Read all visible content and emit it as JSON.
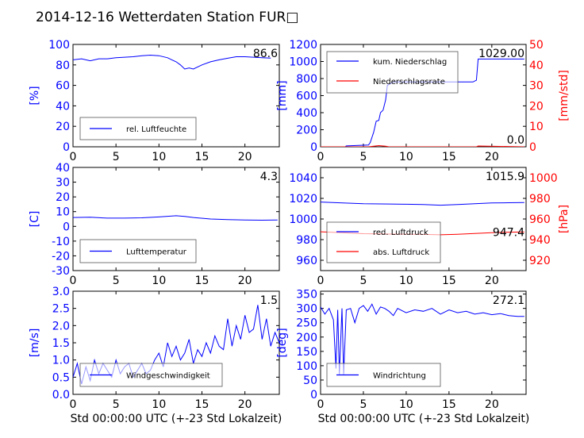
{
  "title": "2014-12-16 Wetterdaten Station FUR□",
  "xlabel": "Std 00:00:00 UTC (+-23 Std Lokalzeit)",
  "colors": {
    "blue": "#0000ff",
    "red": "#ff0000",
    "black": "#000000"
  },
  "chart_data": [
    {
      "type": "line",
      "panel": "humidity",
      "xlim": [
        0,
        24
      ],
      "xticks": [
        0,
        5,
        10,
        15,
        20
      ],
      "ylabel": "[%]",
      "ylim": [
        0,
        100
      ],
      "yticks": [
        0,
        20,
        40,
        60,
        80,
        100
      ],
      "current_value": "86.6",
      "legend_position": "lower-left",
      "series": [
        {
          "name": "rel. Luftfeuchte",
          "color": "#0000ff",
          "x": [
            0,
            1,
            2,
            3,
            4,
            5,
            6,
            7,
            8,
            9,
            10,
            11,
            11.5,
            12,
            12.5,
            13,
            13.5,
            14,
            15,
            16,
            17,
            18,
            19,
            20,
            21,
            22,
            23
          ],
          "y": [
            85,
            86,
            84,
            86,
            86,
            87,
            87.5,
            88,
            89,
            89.5,
            89,
            87,
            85,
            83,
            80,
            76,
            77,
            76,
            80,
            83,
            85,
            86.5,
            88,
            88,
            87.5,
            87,
            86.6
          ]
        }
      ]
    },
    {
      "type": "line",
      "panel": "precipitation",
      "xlim": [
        0,
        24
      ],
      "xticks": [
        0,
        5,
        10,
        15,
        20
      ],
      "ylabel": "[mm]",
      "ylim": [
        0,
        1200
      ],
      "yticks": [
        0,
        200,
        400,
        600,
        800,
        1000,
        1200
      ],
      "ylabel_right": "[mm/std]",
      "ylim_right": [
        0,
        50
      ],
      "yticks_right": [
        0,
        10,
        20,
        30,
        40,
        50
      ],
      "current_value": "1029.00",
      "current_value_right": "0.0",
      "legend_position": "upper-left",
      "series": [
        {
          "name": "kum. Niederschlag",
          "color": "#0000ff",
          "axis": "left",
          "x": [
            0,
            2.9,
            3,
            5.6,
            5.8,
            6.2,
            6.5,
            6.8,
            7.0,
            7.3,
            7.6,
            7.8,
            8.5,
            10,
            12,
            14,
            16,
            17.8,
            18.2,
            18.4,
            20,
            22,
            23.8
          ],
          "y": [
            0,
            0,
            10,
            20,
            50,
            170,
            300,
            310,
            400,
            430,
            550,
            720,
            760,
            760,
            760,
            760,
            760,
            760,
            780,
            1029,
            1029,
            1029,
            1029
          ]
        },
        {
          "name": "Niederschlagsrate",
          "color": "#ff0000",
          "axis": "right",
          "x": [
            0,
            5.6,
            6.2,
            6.8,
            7.6,
            8.0,
            18.2,
            18.4,
            23.8
          ],
          "y": [
            0,
            0,
            0.3,
            0.6,
            0.3,
            0,
            0,
            0.4,
            0
          ]
        }
      ]
    },
    {
      "type": "line",
      "panel": "temperature",
      "xlim": [
        0,
        24
      ],
      "xticks": [
        0,
        5,
        10,
        15,
        20
      ],
      "ylabel": "[C]",
      "ylim": [
        -30,
        40
      ],
      "yticks": [
        -30,
        -20,
        -10,
        0,
        10,
        20,
        30,
        40
      ],
      "current_value": "4.3",
      "legend_position": "lower-left",
      "series": [
        {
          "name": "Lufttemperatur",
          "color": "#0000ff",
          "x": [
            0,
            2,
            4,
            6,
            8,
            10,
            12,
            13,
            14,
            16,
            18,
            20,
            22,
            23.8
          ],
          "y": [
            6.0,
            6.2,
            5.6,
            5.6,
            5.8,
            6.4,
            7.2,
            6.8,
            6.0,
            5.0,
            4.6,
            4.3,
            4.2,
            4.3
          ]
        }
      ]
    },
    {
      "type": "line",
      "panel": "pressure",
      "xlim": [
        0,
        24
      ],
      "xticks": [
        0,
        5,
        10,
        15,
        20
      ],
      "ylim": [
        950,
        1050
      ],
      "yticks": [
        960,
        980,
        1000,
        1020,
        1040
      ],
      "ylabel_right": "[hPa]",
      "ylim_right": [
        910,
        1010
      ],
      "yticks_right": [
        920,
        940,
        960,
        980,
        1000
      ],
      "current_value": "1015.9",
      "current_value_right": "947.4",
      "legend_position": "lower-left",
      "series": [
        {
          "name": "red. Luftdruck",
          "color": "#0000ff",
          "axis": "left",
          "x": [
            0,
            2,
            5,
            8,
            10,
            12,
            14,
            16,
            18,
            20,
            22,
            23.8
          ],
          "y": [
            1016.5,
            1015.8,
            1014.8,
            1014.5,
            1014.3,
            1014.0,
            1013.4,
            1014.0,
            1014.8,
            1015.5,
            1015.8,
            1015.9
          ]
        },
        {
          "name": "abs. Luftdruck",
          "color": "#ff0000",
          "axis": "right",
          "x": [
            0,
            2,
            5,
            8,
            10,
            12,
            14,
            16,
            18,
            20,
            22,
            23.8
          ],
          "y": [
            947.6,
            946.9,
            945.8,
            945.4,
            945.3,
            945.1,
            944.7,
            945.2,
            946.0,
            946.8,
            947.2,
            947.4
          ]
        }
      ]
    },
    {
      "type": "line",
      "panel": "wind-speed",
      "xlim": [
        0,
        24
      ],
      "xticks": [
        0,
        5,
        10,
        15,
        20
      ],
      "ylabel": "[m/s]",
      "ylim": [
        0,
        3
      ],
      "yticks": [
        0,
        0.5,
        1.0,
        1.5,
        2.0,
        2.5,
        3.0
      ],
      "current_value": "1.5",
      "legend_position": "lower-left",
      "series": [
        {
          "name": "Windgeschwindigkeit",
          "color": "#0000ff",
          "x": [
            0,
            0.5,
            1,
            1.5,
            2,
            2.5,
            3,
            3.5,
            4,
            4.5,
            5,
            5.5,
            6,
            6.5,
            7,
            7.5,
            8,
            8.5,
            9,
            9.5,
            10,
            10.5,
            11,
            11.5,
            12,
            12.5,
            13,
            13.5,
            14,
            14.5,
            15,
            15.5,
            16,
            16.5,
            17,
            17.5,
            18,
            18.5,
            19,
            19.5,
            20,
            20.5,
            21,
            21.5,
            22,
            22.5,
            23,
            23.5,
            24
          ],
          "y": [
            0.5,
            0.9,
            0.3,
            0.8,
            0.4,
            1.0,
            0.6,
            0.9,
            0.7,
            0.5,
            1.0,
            0.6,
            0.8,
            0.9,
            0.5,
            0.7,
            0.9,
            0.6,
            0.7,
            1.0,
            1.2,
            0.8,
            1.5,
            1.1,
            1.4,
            1.0,
            1.2,
            1.6,
            0.9,
            1.3,
            1.1,
            1.5,
            1.2,
            1.7,
            1.4,
            1.3,
            2.2,
            1.4,
            2.0,
            1.6,
            2.3,
            1.8,
            1.9,
            2.6,
            1.6,
            2.2,
            1.4,
            1.8,
            1.5
          ]
        }
      ]
    },
    {
      "type": "line",
      "panel": "wind-direction",
      "xlim": [
        0,
        24
      ],
      "xticks": [
        0,
        5,
        10,
        15,
        20
      ],
      "ylabel": "[deg]",
      "ylim": [
        0,
        360
      ],
      "yticks": [
        0,
        50,
        100,
        150,
        200,
        250,
        300,
        350
      ],
      "current_value": "272.1",
      "legend_position": "lower-left",
      "series": [
        {
          "name": "Windrichtung",
          "color": "#0000ff",
          "x": [
            0,
            0.5,
            1,
            1.5,
            1.8,
            2.0,
            2.2,
            2.5,
            2.7,
            3.0,
            3.5,
            4,
            4.5,
            5,
            5.5,
            6,
            6.5,
            7,
            7.5,
            8,
            8.5,
            9,
            10,
            11,
            12,
            13,
            14,
            15,
            16,
            17,
            18,
            19,
            20,
            21,
            22,
            23,
            23.8
          ],
          "y": [
            305,
            280,
            300,
            260,
            90,
            295,
            70,
            300,
            70,
            295,
            300,
            250,
            300,
            310,
            290,
            315,
            280,
            305,
            300,
            290,
            275,
            300,
            285,
            295,
            290,
            300,
            280,
            295,
            285,
            290,
            280,
            285,
            278,
            282,
            275,
            272,
            272
          ]
        }
      ]
    }
  ]
}
